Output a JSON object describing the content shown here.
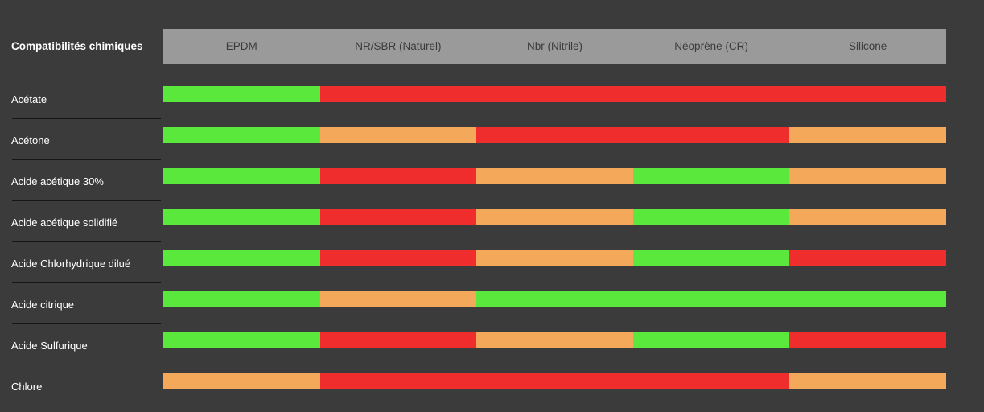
{
  "title": "Compatibilités chimiques",
  "colors": {
    "background": "#3B3B3B",
    "header_bg": "#9A9A9A",
    "header_text": "#3B3B3B",
    "label_text": "#FFFFFF",
    "divider": "#161616",
    "good": "#5BE83D",
    "medium": "#F3A959",
    "bad": "#EF2D2D"
  },
  "chart_data": {
    "type": "heatmap",
    "title": "Compatibilités chimiques",
    "columns": [
      "EPDM",
      "NR/SBR (Naturel)",
      "Nbr (Nitrile)",
      "Néoprène (CR)",
      "Silicone"
    ],
    "rating_scale": [
      "good",
      "medium",
      "bad"
    ],
    "rows": [
      {
        "label": "Acétate",
        "ratings": [
          "good",
          "bad",
          "bad",
          "bad",
          "bad"
        ]
      },
      {
        "label": "Acétone",
        "ratings": [
          "good",
          "medium",
          "bad",
          "bad",
          "medium"
        ]
      },
      {
        "label": "Acide acétique 30%",
        "ratings": [
          "good",
          "bad",
          "medium",
          "good",
          "medium"
        ]
      },
      {
        "label": "Acide acétique solidifié",
        "ratings": [
          "good",
          "bad",
          "medium",
          "good",
          "medium"
        ]
      },
      {
        "label": "Acide Chlorhydrique dilué",
        "ratings": [
          "good",
          "bad",
          "medium",
          "good",
          "bad"
        ]
      },
      {
        "label": "Acide citrique",
        "ratings": [
          "good",
          "medium",
          "good",
          "good",
          "good"
        ]
      },
      {
        "label": "Acide Sulfurique",
        "ratings": [
          "good",
          "bad",
          "medium",
          "good",
          "bad"
        ]
      },
      {
        "label": "Chlore",
        "ratings": [
          "medium",
          "bad",
          "bad",
          "bad",
          "medium"
        ]
      }
    ]
  }
}
